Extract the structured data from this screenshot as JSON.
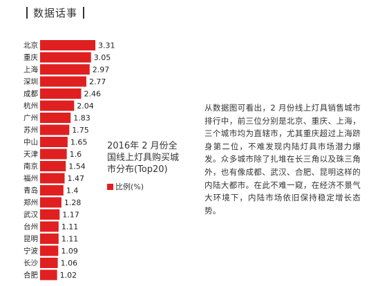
{
  "header": {
    "title": "数据话事"
  },
  "chart_data": {
    "type": "bar",
    "orientation": "horizontal",
    "title": "2016年 2 月份全国线上灯具购买城市分布(Top20)",
    "legend": [
      "比例(%)"
    ],
    "categories": [
      "北京",
      "重庆",
      "上海",
      "深圳",
      "成都",
      "杭州",
      "广州",
      "苏州",
      "中山",
      "天津",
      "南京",
      "福州",
      "青岛",
      "郑州",
      "武汉",
      "台州",
      "昆明",
      "宁波",
      "长沙",
      "合肥"
    ],
    "series": [
      {
        "name": "比例(%)",
        "values": [
          3.31,
          3.05,
          2.97,
          2.77,
          2.46,
          2.04,
          1.83,
          1.75,
          1.65,
          1.6,
          1.54,
          1.47,
          1.4,
          1.28,
          1.17,
          1.11,
          1.11,
          1.09,
          1.06,
          1.02
        ],
        "value_labels": [
          "3.31",
          "3.05",
          "2.97",
          "2.77",
          "2.46",
          "2.04",
          "1.83",
          "1.75",
          "1.65",
          "1.6",
          "1.54",
          "1.47",
          "1.4",
          "1.28",
          "1.17",
          "1.11",
          "1.11",
          "1.09",
          "1.06",
          "1.02"
        ]
      }
    ],
    "xlabel": "",
    "ylabel": "",
    "xlim": [
      0,
      3.31
    ],
    "grid": false,
    "legend_position": "below-title",
    "colors": {
      "bar": "#e02020"
    }
  },
  "chart_title_lines": "2016年 2 月份全\n国线上灯具购买城\n市分布(Top20)",
  "legend": {
    "label": "比例(%)"
  },
  "description": "从数据图可看出，2 月份线上灯具销售城市排行中，前三位分别是北京、重庆、上海，三个城市均为直辖市，尤其重庆超过上海跻身第二位，不难发现内陆灯具市场潜力爆发。众多城市除了扎堆在长三角以及珠三角外，也有像成都、武汉、合肥、昆明这样的内陆大都市。在此不难一窥，在经济不景气大环境下，内陆市场依旧保持稳定增长态势。"
}
